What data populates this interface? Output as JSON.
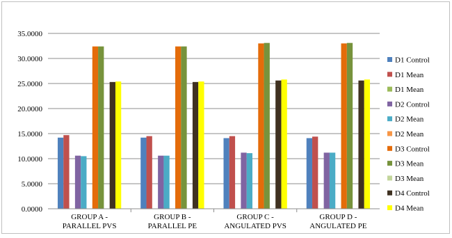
{
  "chart_data": {
    "type": "bar",
    "title": "",
    "xlabel": "",
    "ylabel": "",
    "ylim": [
      0,
      35
    ],
    "y_ticks": [
      "0.0000",
      "5.0000",
      "10.0000",
      "15.0000",
      "20.0000",
      "25.0000",
      "30.0000",
      "35.0000"
    ],
    "y_tick_values": [
      0,
      5,
      10,
      15,
      20,
      25,
      30,
      35
    ],
    "grid": true,
    "legend_position": "right",
    "categories": [
      [
        "GROUP A -",
        "PARALLEL PVS"
      ],
      [
        "GROUP B -",
        "PARALLEL PE"
      ],
      [
        "GROUP C -",
        "ANGULATED PVS"
      ],
      [
        "GROUP D -",
        "ANGULATED PE"
      ]
    ],
    "series": [
      {
        "name": "D1 Control",
        "color": "#4f81bd",
        "values": [
          14.2,
          14.2,
          14.1,
          14.1
        ]
      },
      {
        "name": "D1 Mean",
        "color": "#c0504d",
        "values": [
          14.7,
          14.5,
          14.5,
          14.4
        ]
      },
      {
        "name": "D1 Mean",
        "color": "#9bbb59",
        "values": [
          null,
          null,
          null,
          null
        ]
      },
      {
        "name": "D2 Control",
        "color": "#8064a2",
        "values": [
          10.6,
          10.6,
          11.2,
          11.2
        ]
      },
      {
        "name": "D2 Mean",
        "color": "#4bacc6",
        "values": [
          10.5,
          10.6,
          11.1,
          11.2
        ]
      },
      {
        "name": "D2 Mean",
        "color": "#f79646",
        "values": [
          null,
          null,
          null,
          null
        ]
      },
      {
        "name": "D3 Control",
        "color": "#e46c0a",
        "values": [
          32.4,
          32.4,
          33.0,
          33.0
        ]
      },
      {
        "name": "D3 Mean",
        "color": "#77933c",
        "values": [
          32.4,
          32.4,
          33.1,
          33.1
        ]
      },
      {
        "name": "D3 Mean",
        "color": "#c3d69b",
        "values": [
          null,
          null,
          null,
          null
        ]
      },
      {
        "name": "D4 Control",
        "color": "#3f3121",
        "values": [
          25.3,
          25.3,
          25.6,
          25.6
        ]
      },
      {
        "name": "D4 Mean",
        "color": "#ffff00",
        "values": [
          25.4,
          25.4,
          25.8,
          25.8
        ]
      }
    ]
  }
}
